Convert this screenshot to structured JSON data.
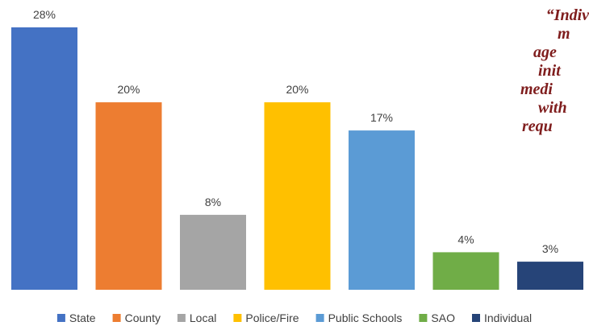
{
  "chart_data": {
    "type": "bar",
    "categories": [
      "State",
      "County",
      "Local",
      "Police/Fire",
      "Public Schools",
      "SAO",
      "Individual"
    ],
    "values": [
      28,
      20,
      8,
      20,
      17,
      4,
      3
    ],
    "data_labels": [
      "28%",
      "20%",
      "8%",
      "20%",
      "17%",
      "4%",
      "3%"
    ],
    "colors": [
      "#4472C4",
      "#ED7D31",
      "#A5A5A5",
      "#FFC000",
      "#5B9BD5",
      "#70AD47",
      "#264478"
    ],
    "ylim": [
      0,
      28
    ],
    "grid": false,
    "legend_position": "bottom",
    "legend": [
      "State",
      "County",
      "Local",
      "Police/Fire",
      "Public Schools",
      "SAO",
      "Individual"
    ]
  },
  "quote": {
    "lines": [
      "“Indiv",
      "m",
      "age",
      "init",
      "medi",
      "with",
      "requ"
    ]
  }
}
